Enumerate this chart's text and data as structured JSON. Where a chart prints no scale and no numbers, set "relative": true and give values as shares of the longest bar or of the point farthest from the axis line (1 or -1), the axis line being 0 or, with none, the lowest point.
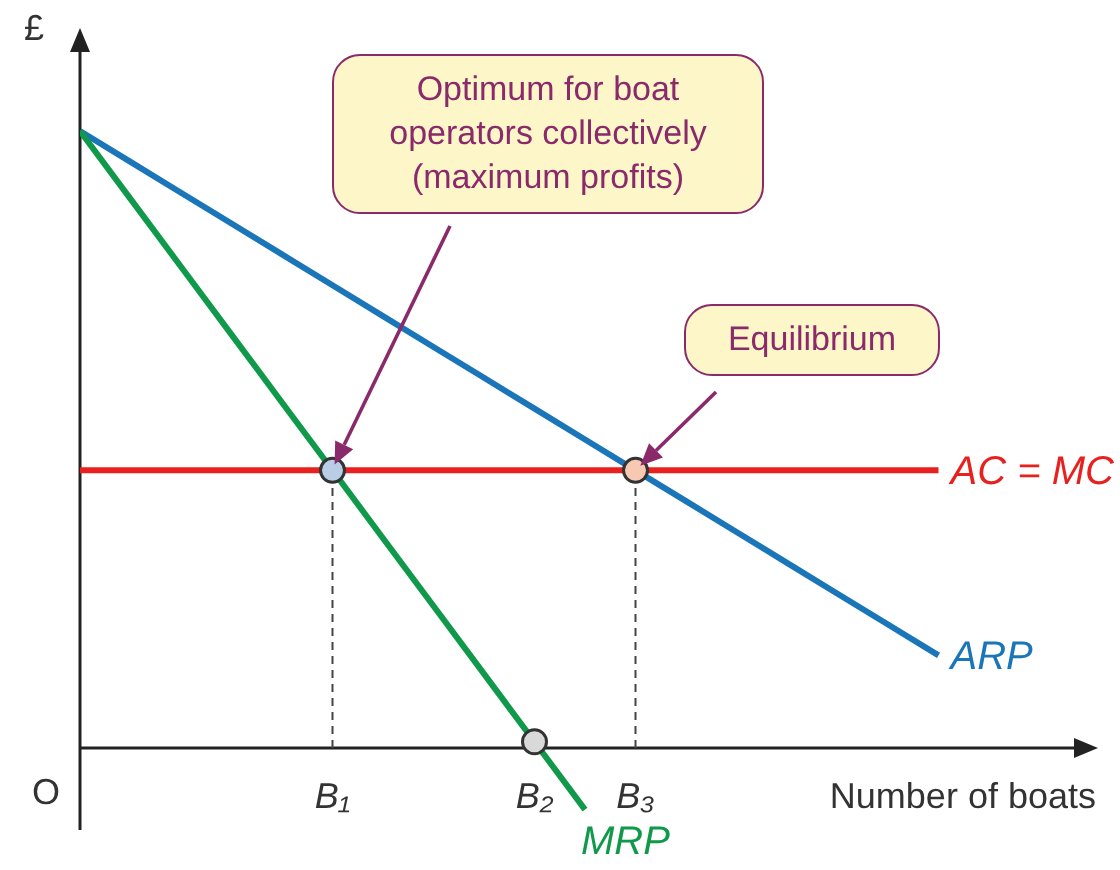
{
  "chart_data": {
    "type": "line",
    "relative": true,
    "ylabel": "£",
    "xlabel": "Number of boats",
    "categories": [
      null,
      null,
      null,
      null,
      null,
      "B₁",
      null,
      null,
      null,
      "B₂",
      null,
      "B₃",
      null,
      null,
      null,
      null,
      null,
      null,
      null,
      null,
      null
    ],
    "annotations": [
      "O",
      "Optimum for boat operators collectively (maximum profits)",
      "Equilibrium"
    ],
    "series": [
      {
        "name": "ARP",
        "color": "#1a75b9",
        "values": [
          1,
          0.95,
          0.9,
          0.85,
          0.8,
          0.75,
          0.7,
          0.65,
          0.6,
          0.55,
          0.5,
          0.45,
          0.4,
          0.35,
          0.3,
          0.25,
          0.2,
          0.15,
          null,
          null,
          null
        ]
      },
      {
        "name": "MRP",
        "color": "#10994a",
        "values": [
          1,
          0.89,
          0.78,
          0.67,
          0.56,
          0.45,
          0.34,
          0.23,
          0.12,
          0.01,
          -0.1,
          null,
          null,
          null,
          null,
          null,
          null,
          null,
          null,
          null,
          null
        ]
      },
      {
        "name": "AC = MC",
        "color": "#e8201e",
        "values": [
          0.45,
          0.45,
          0.45,
          0.45,
          0.45,
          0.45,
          0.45,
          0.45,
          0.45,
          0.45,
          0.45,
          0.45,
          0.45,
          0.45,
          0.45,
          0.45,
          0.45,
          0.45,
          null,
          null,
          null
        ]
      },
      {
        "type": "scatter",
        "marker": "circle",
        "values": [
          null,
          null,
          null,
          null,
          null,
          0.45,
          null,
          null,
          null,
          0.01,
          null,
          0.45,
          null,
          null,
          null,
          null,
          null,
          null,
          null,
          null,
          null
        ],
        "colors": [
          null,
          null,
          null,
          null,
          null,
          "#b9cde6",
          null,
          null,
          null,
          "#d9d9d9",
          null,
          "#f7c9b2",
          null,
          null,
          null,
          null,
          null,
          null,
          null,
          null,
          null
        ]
      }
    ]
  }
}
